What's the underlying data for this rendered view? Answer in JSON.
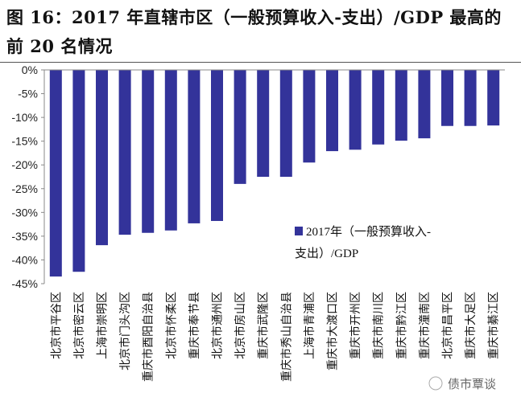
{
  "title": "图 16：2017 年直辖市区（一般预算收入-支出）/GDP 最高的前 20 名情况",
  "watermark": "债市覃谈",
  "chart_data": {
    "type": "bar",
    "title": "图 16：2017 年直辖市区（一般预算收入-支出）/GDP 最高的前 20 名情况",
    "categories": [
      "北京市平谷区",
      "北京市密云区",
      "上海市崇明区",
      "北京市门头沟区",
      "重庆市酉阳自治县",
      "北京市怀柔区",
      "重庆市奉节县",
      "北京市通州区",
      "北京市房山区",
      "重庆市武隆区",
      "重庆市秀山自治县",
      "上海市青浦区",
      "重庆市大渡口区",
      "重庆市开州区",
      "重庆市南川区",
      "重庆市黔江区",
      "重庆市潼南区",
      "北京市昌平区",
      "重庆市大足区",
      "重庆市綦江区"
    ],
    "series": [
      {
        "name": "2017年（一般预算收入-支出）/GDP",
        "values": [
          -43.5,
          -42.5,
          -36.9,
          -34.7,
          -34.3,
          -33.8,
          -32.3,
          -31.8,
          -24.0,
          -22.5,
          -22.5,
          -19.5,
          -17.1,
          -16.8,
          -15.7,
          -14.9,
          -14.4,
          -11.8,
          -11.8,
          -11.7
        ]
      }
    ],
    "legend_lines": [
      "2017年（一般预算收入-",
      "支出）/GDP"
    ],
    "legend_position": "inside-right",
    "ylim": [
      -45,
      0
    ],
    "yticks": [
      "0%",
      "-5%",
      "-10%",
      "-15%",
      "-20%",
      "-25%",
      "-30%",
      "-35%",
      "-40%",
      "-45%"
    ],
    "grid": false,
    "bar_color": "#33339a",
    "xlabel": "",
    "ylabel": ""
  }
}
